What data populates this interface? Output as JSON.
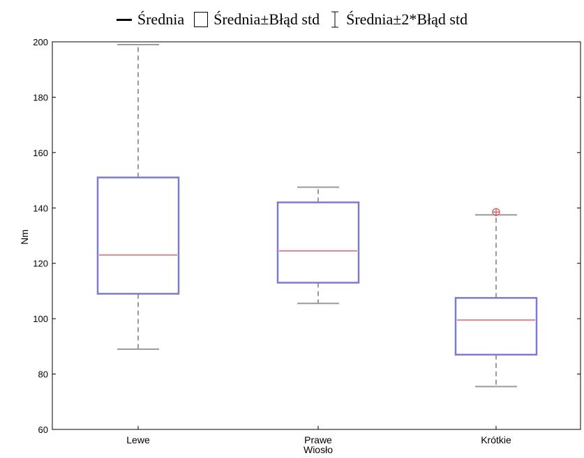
{
  "legend": {
    "mean_label": "Średnia",
    "box_label": "Średnia±Błąd std",
    "whisker_label": "Średnia±2*Błąd std"
  },
  "chart_data": {
    "type": "box",
    "title": "",
    "xlabel": "",
    "ylabel": "Nm",
    "ylim": [
      60,
      200
    ],
    "yticks": [
      60,
      80,
      100,
      120,
      140,
      160,
      180,
      200
    ],
    "categories": [
      "Lewe",
      "Prawe\nWiosło",
      "Krótkie"
    ],
    "boxes": [
      {
        "category": "Lewe",
        "mean": 123,
        "box_low": 109,
        "box_high": 151,
        "whisker_low": 89,
        "whisker_high": 199
      },
      {
        "category": "Prawe\nWiosło",
        "mean": 124.5,
        "box_low": 113,
        "box_high": 142,
        "whisker_low": 105.5,
        "whisker_high": 147.5
      },
      {
        "category": "Krótkie",
        "mean": 99.5,
        "box_low": 87,
        "box_high": 107.5,
        "whisker_low": 75.5,
        "whisker_high": 137.5,
        "outliers": [
          138.5
        ]
      }
    ],
    "grid": false,
    "legend_position": "top",
    "colors": {
      "box": "#7b7bd0",
      "mean": "#d48a8a",
      "whisker": "#9a9a9a",
      "outlier": "#d46a6a",
      "axis": "#000000"
    }
  }
}
